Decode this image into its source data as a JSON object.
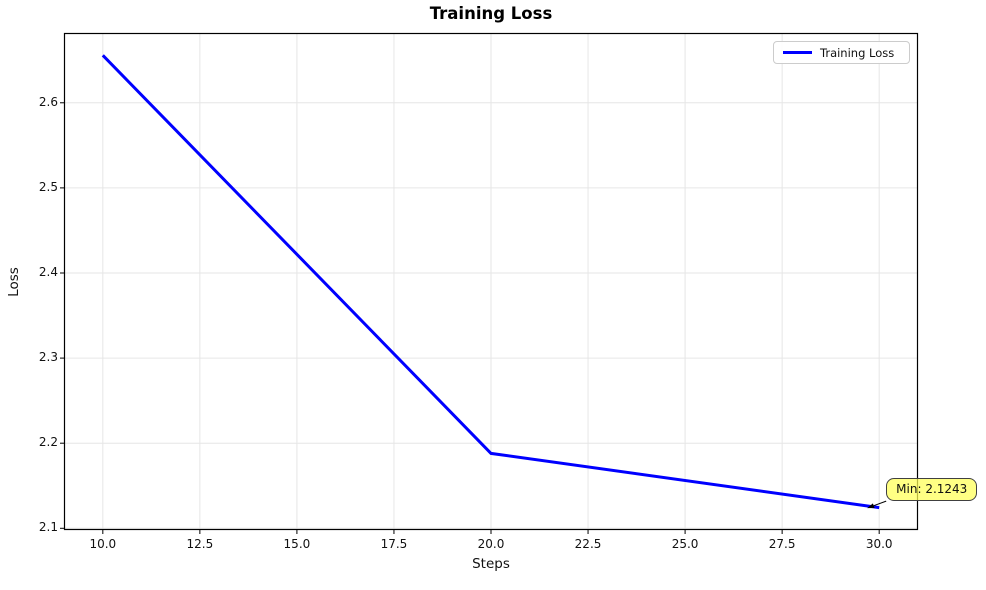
{
  "window": {
    "background": "#ffffff"
  },
  "chart_data": {
    "type": "line",
    "title": "Training Loss",
    "xlabel": "Steps",
    "ylabel": "Loss",
    "xlim": [
      9,
      31
    ],
    "ylim": [
      2.098,
      2.682
    ],
    "grid": true,
    "grid_color": "#e6e6e6",
    "frame_color": "#000000",
    "x_ticks": {
      "values": [
        10,
        12.5,
        15,
        17.5,
        20,
        22.5,
        25,
        27.5,
        30
      ],
      "labels": [
        "10.0",
        "12.5",
        "15.0",
        "17.5",
        "20.0",
        "22.5",
        "25.0",
        "27.5",
        "30.0"
      ]
    },
    "y_ticks": {
      "values": [
        2.1,
        2.2,
        2.3,
        2.4,
        2.5,
        2.6
      ],
      "labels": [
        "2.1",
        "2.2",
        "2.3",
        "2.4",
        "2.5",
        "2.6"
      ]
    },
    "series": [
      {
        "name": "Training Loss",
        "color": "#0000ff",
        "line_width": 3,
        "x": [
          10,
          20,
          30
        ],
        "y": [
          2.6558,
          2.188,
          2.1243
        ]
      }
    ],
    "legend": {
      "position": "upper right",
      "entries": [
        {
          "label": "Training Loss",
          "color": "#0000ff"
        }
      ]
    },
    "annotation": {
      "text": "Min: 2.1243",
      "xy": [
        30,
        2.1243
      ],
      "box_color": "#ffff55",
      "border_color": "#404040",
      "arrow_color": "#000000"
    }
  }
}
